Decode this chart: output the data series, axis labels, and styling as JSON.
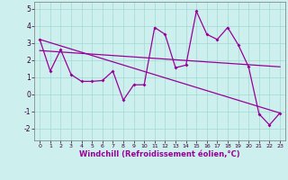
{
  "background_color": "#cdf0ee",
  "line_color": "#990099",
  "grid_color": "#a0d8d4",
  "xlabel": "Windchill (Refroidissement éolien,°C)",
  "xlabel_fontsize": 6.0,
  "xlim": [
    -0.5,
    23.5
  ],
  "ylim": [
    -2.7,
    5.4
  ],
  "yticks": [
    -2,
    -1,
    0,
    1,
    2,
    3,
    4,
    5
  ],
  "xticks": [
    0,
    1,
    2,
    3,
    4,
    5,
    6,
    7,
    8,
    9,
    10,
    11,
    12,
    13,
    14,
    15,
    16,
    17,
    18,
    19,
    20,
    21,
    22,
    23
  ],
  "zigzag_x": [
    0,
    1,
    2,
    3,
    4,
    5,
    6,
    7,
    8,
    9,
    10,
    11,
    12,
    13,
    14,
    15,
    16,
    17,
    18,
    19,
    20,
    21,
    22,
    23
  ],
  "zigzag_y": [
    3.2,
    1.35,
    2.6,
    1.15,
    0.75,
    0.75,
    0.8,
    1.35,
    -0.35,
    0.55,
    0.55,
    3.9,
    3.5,
    1.55,
    1.7,
    4.85,
    3.5,
    3.2,
    3.9,
    2.9,
    1.6,
    -1.15,
    -1.8,
    -1.1
  ],
  "trend1_x": [
    0,
    23
  ],
  "trend1_y": [
    3.2,
    -1.1
  ],
  "trend2_x": [
    0,
    23
  ],
  "trend2_y": [
    2.55,
    1.6
  ]
}
